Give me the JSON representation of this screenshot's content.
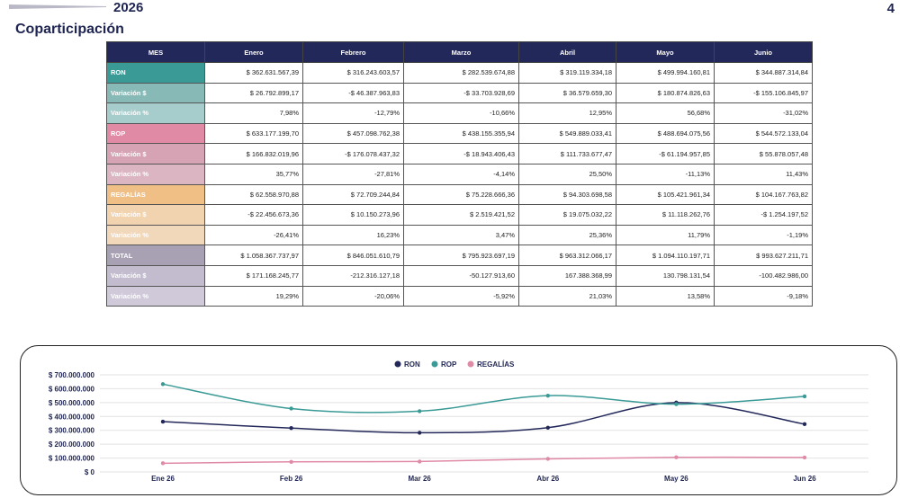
{
  "header": {
    "year": "2026",
    "page_number": "4",
    "title": "Coparticipación"
  },
  "table": {
    "columns": [
      "MES",
      "Enero",
      "Febrero",
      "Marzo",
      "Abril",
      "Mayo",
      "Junio"
    ],
    "rows": [
      {
        "label": "RON",
        "color": "#3a9a96",
        "values": [
          "$ 362.631.567,39",
          "$ 316.243.603,57",
          "$ 282.539.674,88",
          "$ 319.119.334,18",
          "$ 499.994.160,81",
          "$ 344.887.314,84"
        ]
      },
      {
        "label": "Variación $",
        "color": "#87b9b7",
        "values": [
          "$ 26.792.899,17",
          "-$ 46.387.963,83",
          "-$ 33.703.928,69",
          "$ 36.579.659,30",
          "$ 180.874.826,63",
          "-$ 155.106.845,97"
        ]
      },
      {
        "label": "Variación %",
        "color": "#a6cccb",
        "values": [
          "7,98%",
          "-12,79%",
          "-10,66%",
          "12,95%",
          "56,68%",
          "-31,02%"
        ]
      },
      {
        "label": "ROP",
        "color": "#e08aa6",
        "values": [
          "$ 633.177.199,70",
          "$ 457.098.762,38",
          "$ 438.155.355,94",
          "$ 549.889.033,41",
          "$ 488.694.075,56",
          "$ 544.572.133,04"
        ]
      },
      {
        "label": "Variación $",
        "color": "#d5a3b3",
        "values": [
          "$ 166.832.019,96",
          "-$ 176.078.437,32",
          "-$ 18.943.406,43",
          "$ 111.733.677,47",
          "-$ 61.194.957,85",
          "$ 55.878.057,48"
        ]
      },
      {
        "label": "Variación %",
        "color": "#dcb5c2",
        "values": [
          "35,77%",
          "-27,81%",
          "-4,14%",
          "25,50%",
          "-11,13%",
          "11,43%"
        ]
      },
      {
        "label": "REGALÍAS",
        "color": "#f0bf86",
        "values": [
          "$ 62.558.970,88",
          "$ 72.709.244,84",
          "$ 75.228.666,36",
          "$ 94.303.698,58",
          "$ 105.421.961,34",
          "$ 104.167.763,82"
        ]
      },
      {
        "label": "Variación $",
        "color": "#f2d3b0",
        "values": [
          "-$ 22.456.673,36",
          "$ 10.150.273,96",
          "$ 2.519.421,52",
          "$ 19.075.032,22",
          "$ 11.118.262,76",
          "-$ 1.254.197,52"
        ]
      },
      {
        "label": "Variación %",
        "color": "#f2d8bb",
        "values": [
          "-26,41%",
          "16,23%",
          "3,47%",
          "25,36%",
          "11,79%",
          "-1,19%"
        ]
      },
      {
        "label": "TOTAL",
        "color": "#a7a1b3",
        "values": [
          "$ 1.058.367.737,97",
          "$ 846.051.610,79",
          "$ 795.923.697,19",
          "$ 963.312.066,17",
          "$ 1.094.110.197,71",
          "$ 993.627.211,71"
        ]
      },
      {
        "label": "Variación $",
        "color": "#c3bcce",
        "values": [
          "$ 171.168.245,77",
          "-212.316.127,18",
          "-50.127.913,60",
          "167.388.368,99",
          "130.798.131,54",
          "-100.482.986,00"
        ]
      },
      {
        "label": "Variación %",
        "color": "#cfc9da",
        "values": [
          "19,29%",
          "-20,06%",
          "-5,92%",
          "21,03%",
          "13,58%",
          "-9,18%"
        ]
      }
    ]
  },
  "chart_data": {
    "type": "line",
    "categories": [
      "Ene 26",
      "Feb 26",
      "Mar 26",
      "Abr 26",
      "May 26",
      "Jun 26"
    ],
    "series": [
      {
        "name": "RON",
        "color": "#23285a",
        "values": [
          362631567.39,
          316243603.57,
          282539674.88,
          319119334.18,
          499994160.81,
          344887314.84
        ]
      },
      {
        "name": "ROP",
        "color": "#3a9a96",
        "values": [
          633177199.7,
          457098762.38,
          438155355.94,
          549889033.41,
          488694075.56,
          544572133.04
        ]
      },
      {
        "name": "REGALÍAS",
        "color": "#e08aa6",
        "values": [
          62558970.88,
          72709244.84,
          75228666.36,
          94303698.58,
          105421961.34,
          104167763.82
        ]
      }
    ],
    "y_ticks": [
      "$ 0",
      "$ 100.000.000",
      "$ 200.000.000",
      "$ 300.000.000",
      "$ 400.000.000",
      "$ 500.000.000",
      "$ 600.000.000",
      "$ 700.000.000"
    ],
    "ylim": [
      0,
      700000000
    ],
    "grid": true,
    "legend": "top-center"
  }
}
